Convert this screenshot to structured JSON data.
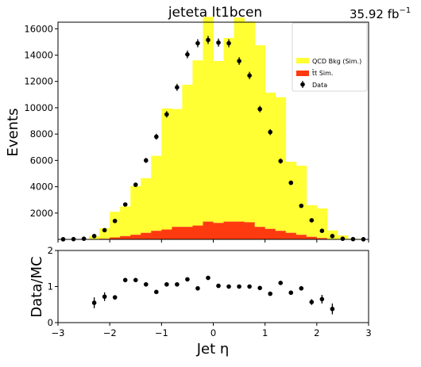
{
  "figure": {
    "title": "jeteta  lt1bcen",
    "lumi": "35.92 fb",
    "lumi_sup": "−1"
  },
  "chart_data": [
    {
      "type": "bar",
      "subtype": "stacked-histogram",
      "ylabel": "Events",
      "xlim": [
        -3,
        3
      ],
      "ylim": [
        0,
        16500
      ],
      "yticks": [
        2000,
        4000,
        6000,
        8000,
        10000,
        12000,
        14000,
        16000
      ],
      "xticks": [
        -3,
        -2,
        -1,
        0,
        1,
        2,
        3
      ],
      "bin_edges": [
        -3.0,
        -2.8,
        -2.6,
        -2.4,
        -2.2,
        -2.0,
        -1.8,
        -1.6,
        -1.4,
        -1.2,
        -1.0,
        -0.8,
        -0.6,
        -0.4,
        -0.2,
        0.0,
        0.2,
        0.4,
        0.6,
        0.8,
        1.0,
        1.2,
        1.4,
        1.6,
        1.8,
        2.0,
        2.2,
        2.4,
        2.6,
        2.8,
        3.0
      ],
      "series": [
        {
          "name": "t̄t Sim.",
          "color": "#ff3a0f",
          "values": [
            0,
            0,
            0,
            10,
            50,
            150,
            250,
            350,
            500,
            650,
            750,
            950,
            950,
            1050,
            1350,
            1250,
            1350,
            1350,
            1300,
            950,
            800,
            650,
            500,
            350,
            200,
            100,
            30,
            0,
            0,
            0
          ]
        },
        {
          "name": "QCD Bkg (Sim.)",
          "color": "#ffff33",
          "values": [
            0,
            0,
            0,
            250,
            800,
            1950,
            2250,
            3700,
            4150,
            5700,
            9200,
            8950,
            10800,
            12550,
            15550,
            12300,
            13950,
            15500,
            15250,
            13800,
            10350,
            10150,
            5400,
            5250,
            2400,
            2250,
            650,
            300,
            50,
            0
          ]
        }
      ],
      "data": {
        "name": "Data",
        "x": [
          -2.9,
          -2.7,
          -2.5,
          -2.3,
          -2.1,
          -1.9,
          -1.7,
          -1.5,
          -1.3,
          -1.1,
          -0.9,
          -0.7,
          -0.5,
          -0.3,
          -0.1,
          0.1,
          0.3,
          0.5,
          0.7,
          0.9,
          1.1,
          1.3,
          1.5,
          1.7,
          1.9,
          2.1,
          2.3,
          2.5,
          2.7,
          2.9
        ],
        "y": [
          10,
          20,
          50,
          250,
          700,
          1400,
          2650,
          4150,
          6000,
          7800,
          9500,
          11550,
          14050,
          14900,
          15150,
          14950,
          14900,
          13550,
          12450,
          9900,
          8150,
          5950,
          4300,
          2550,
          1450,
          650,
          250,
          50,
          20,
          10
        ]
      },
      "legend": {
        "position": "top-right",
        "entries": [
          "QCD Bkg (Sim.)",
          "t̄t Sim.",
          "Data"
        ]
      }
    },
    {
      "type": "scatter",
      "xlabel": "Jet η",
      "ylabel": "Data/MC",
      "xlim": [
        -3,
        3
      ],
      "ylim": [
        0,
        2
      ],
      "yticks": [
        0,
        1,
        2
      ],
      "xticks": [
        -3,
        -2,
        -1,
        0,
        1,
        2,
        3
      ],
      "x": [
        -2.3,
        -2.1,
        -1.9,
        -1.7,
        -1.5,
        -1.3,
        -1.1,
        -0.9,
        -0.7,
        -0.5,
        -0.3,
        -0.1,
        0.1,
        0.3,
        0.5,
        0.7,
        0.9,
        1.1,
        1.3,
        1.5,
        1.7,
        1.9,
        2.1,
        2.3
      ],
      "y": [
        0.55,
        0.72,
        0.7,
        1.18,
        1.18,
        1.06,
        0.85,
        1.06,
        1.06,
        1.2,
        0.95,
        1.24,
        1.02,
        1.0,
        1.0,
        1.0,
        0.96,
        0.8,
        1.1,
        0.83,
        0.95,
        0.57,
        0.65,
        0.38
      ],
      "yerr": [
        0.15,
        0.12,
        0.06,
        0.06,
        0.05,
        0.04,
        0.04,
        0.03,
        0.03,
        0.03,
        0.03,
        0.03,
        0.03,
        0.03,
        0.03,
        0.03,
        0.03,
        0.03,
        0.04,
        0.05,
        0.06,
        0.08,
        0.12,
        0.15
      ]
    }
  ]
}
